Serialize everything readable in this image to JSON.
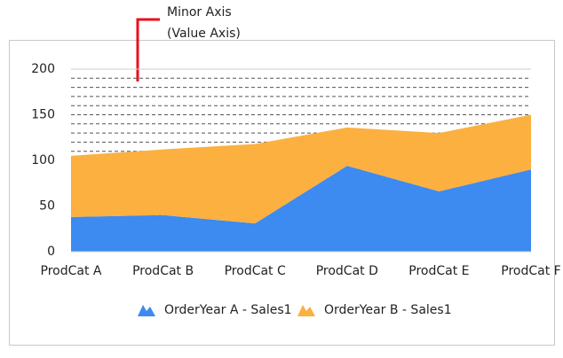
{
  "chart_data": {
    "type": "stacked-area",
    "annotation": [
      "Minor Axis",
      "(Value Axis)"
    ],
    "annotation_color": "#e8101f",
    "categories": [
      "ProdCat A",
      "ProdCat B",
      "ProdCat C",
      "ProdCat D",
      "ProdCat E",
      "ProdCat F"
    ],
    "series": [
      {
        "name": "OrderYear A - Sales1",
        "color": "#3d8af0",
        "values": [
          38,
          40,
          31,
          94,
          66,
          90
        ]
      },
      {
        "name": "OrderYear B - Sales1",
        "color": "#fbb040",
        "values": [
          67,
          72,
          87,
          42,
          64,
          60
        ]
      }
    ],
    "ylim": [
      0,
      200
    ],
    "yticks": [
      0,
      50,
      100,
      150,
      200
    ],
    "minor_grid_step": 10,
    "grid": true,
    "legend": "bottom"
  }
}
